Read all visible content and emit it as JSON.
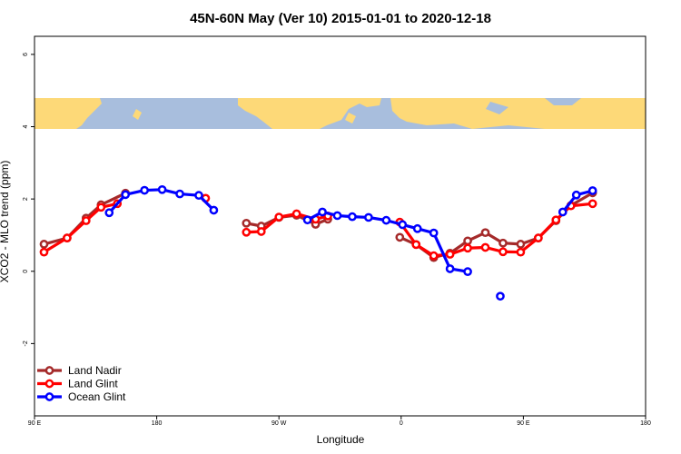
{
  "chart_data": {
    "type": "line",
    "title": "45N-60N May (Ver 10)   2015-01-01 to 2020-12-18",
    "xlabel": "Longitude",
    "ylabel": "XCO2 - MLO trend (ppm)",
    "xlim": [
      90,
      450
    ],
    "ylim": [
      -4,
      6.5
    ],
    "x_ticks": [
      {
        "value": 90,
        "label": "90 E"
      },
      {
        "value": 180,
        "label": "180"
      },
      {
        "value": 270,
        "label": "90 W"
      },
      {
        "value": 360,
        "label": "0"
      },
      {
        "value": 450,
        "label": "90 E"
      },
      {
        "value": 540,
        "label": "180"
      }
    ],
    "y_ticks": [
      {
        "value": -2,
        "label": "-2"
      },
      {
        "value": 0,
        "label": "0"
      },
      {
        "value": 2,
        "label": "2"
      },
      {
        "value": 4,
        "label": "4"
      },
      {
        "value": 6,
        "label": "6"
      }
    ],
    "map_band": {
      "lat_range": [
        45,
        60
      ],
      "ocean_color": "#a8bedd",
      "land_color": "#fdd978"
    },
    "legend_position": "bottom-left",
    "series": [
      {
        "name": "Land Nadir",
        "color": "#a52a2a",
        "segments": [
          [
            [
              97,
              0.75
            ],
            [
              114,
              0.92
            ],
            [
              128,
              1.47
            ],
            [
              139,
              1.84
            ],
            [
              157,
              2.16
            ]
          ],
          [
            [
              246,
              1.33
            ],
            [
              257,
              1.25
            ],
            [
              270,
              1.49
            ],
            [
              283,
              1.55
            ],
            [
              297,
              1.3
            ],
            [
              306,
              1.44
            ]
          ],
          [
            [
              359,
              0.94
            ],
            [
              371,
              0.74
            ],
            [
              384,
              0.38
            ],
            [
              396,
              0.5
            ],
            [
              409,
              0.84
            ],
            [
              422,
              1.07
            ],
            [
              435,
              0.78
            ],
            [
              448,
              0.75
            ],
            [
              461,
              0.92
            ],
            [
              474,
              1.4
            ],
            [
              485,
              1.82
            ],
            [
              501,
              2.17
            ]
          ]
        ]
      },
      {
        "name": "Land Glint",
        "color": "#ff0000",
        "segments": [
          [
            [
              97,
              0.53
            ],
            [
              114,
              0.92
            ],
            [
              128,
              1.4
            ],
            [
              139,
              1.77
            ],
            [
              151,
              1.87
            ]
          ],
          [
            [
              216,
              2.02
            ]
          ],
          [
            [
              246,
              1.08
            ],
            [
              257,
              1.1
            ],
            [
              270,
              1.5
            ],
            [
              283,
              1.59
            ],
            [
              297,
              1.44
            ],
            [
              306,
              1.53
            ]
          ],
          [
            [
              359,
              1.36
            ],
            [
              371,
              0.74
            ],
            [
              384,
              0.43
            ],
            [
              396,
              0.47
            ],
            [
              409,
              0.64
            ],
            [
              422,
              0.66
            ],
            [
              435,
              0.54
            ],
            [
              448,
              0.53
            ],
            [
              461,
              0.92
            ],
            [
              474,
              1.42
            ],
            [
              485,
              1.81
            ],
            [
              501,
              1.87
            ]
          ]
        ]
      },
      {
        "name": "Ocean Glint",
        "color": "#0000ff",
        "segments": [
          [
            [
              145,
              1.62
            ],
            [
              157,
              2.12
            ],
            [
              171,
              2.24
            ],
            [
              184,
              2.26
            ],
            [
              197,
              2.14
            ],
            [
              211,
              2.1
            ],
            [
              222,
              1.69
            ]
          ],
          [
            [
              291,
              1.42
            ],
            [
              302,
              1.64
            ],
            [
              313,
              1.54
            ],
            [
              324,
              1.51
            ],
            [
              336,
              1.49
            ],
            [
              349,
              1.41
            ],
            [
              361,
              1.29
            ],
            [
              372,
              1.18
            ],
            [
              384,
              1.06
            ],
            [
              396,
              0.07
            ],
            [
              409,
              -0.01
            ]
          ]
        ],
        "isolated": [
          [
            433,
            -0.69
          ]
        ],
        "segments_tail": [
          [
            [
              479,
              1.64
            ],
            [
              489,
              2.11
            ],
            [
              501,
              2.23
            ]
          ]
        ]
      }
    ]
  }
}
